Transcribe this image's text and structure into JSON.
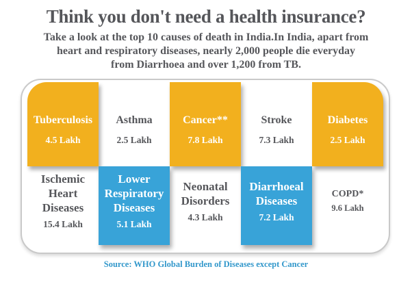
{
  "header": {
    "title": "Think you don't need a health insurance?",
    "subtitle_lines": [
      "Take a look at the top 10 causes of death in India.In India, apart from",
      "heart and respiratory diseases, nearly 2,000 people die everyday",
      "from Diarrhoea and over 1,200 from TB."
    ]
  },
  "cards": {
    "row1": [
      {
        "title": "Tuberculosis",
        "value": "4.5 Lakh"
      },
      {
        "title": "Asthma",
        "value": "2.5 Lakh"
      },
      {
        "title": "Cancer**",
        "value": "7.8 Lakh"
      },
      {
        "title": "Stroke",
        "value": "7.3 Lakh"
      },
      {
        "title": "Diabetes",
        "value": "2.5 Lakh"
      }
    ],
    "row2": [
      {
        "title": "Ischemic Heart Diseases",
        "value": "15.4 Lakh"
      },
      {
        "title": "Lower Respiratory Diseases",
        "value": "5.1 Lakh"
      },
      {
        "title": "Neonatal Disorders",
        "value": "4.3 Lakh"
      },
      {
        "title": "Diarrhoeal Diseases",
        "value": "7.2 Lakh"
      },
      {
        "title": "COPD*",
        "value": "9.6 Lakh"
      }
    ]
  },
  "footer": {
    "source": "Source: WHO Global Burden of Diseases except Cancer"
  },
  "colors": {
    "accent_yellow": "#F2B01E",
    "accent_blue": "#38A3D8",
    "text_dark": "#55565A",
    "source_blue": "#3398CB",
    "panel_border": "#C9C9C9"
  },
  "chart_data": {
    "type": "table",
    "title": "Top 10 causes of death in India (deaths per year)",
    "categories": [
      "Tuberculosis",
      "Asthma",
      "Cancer",
      "Stroke",
      "Diabetes",
      "Ischemic Heart Diseases",
      "Lower Respiratory Diseases",
      "Neonatal Disorders",
      "Diarrhoeal Diseases",
      "COPD"
    ],
    "values": [
      4.5,
      2.5,
      7.8,
      7.3,
      2.5,
      15.4,
      5.1,
      4.3,
      7.2,
      9.6
    ],
    "unit": "Lakh",
    "notes": "Source: WHO Global Burden of Diseases except Cancer"
  }
}
